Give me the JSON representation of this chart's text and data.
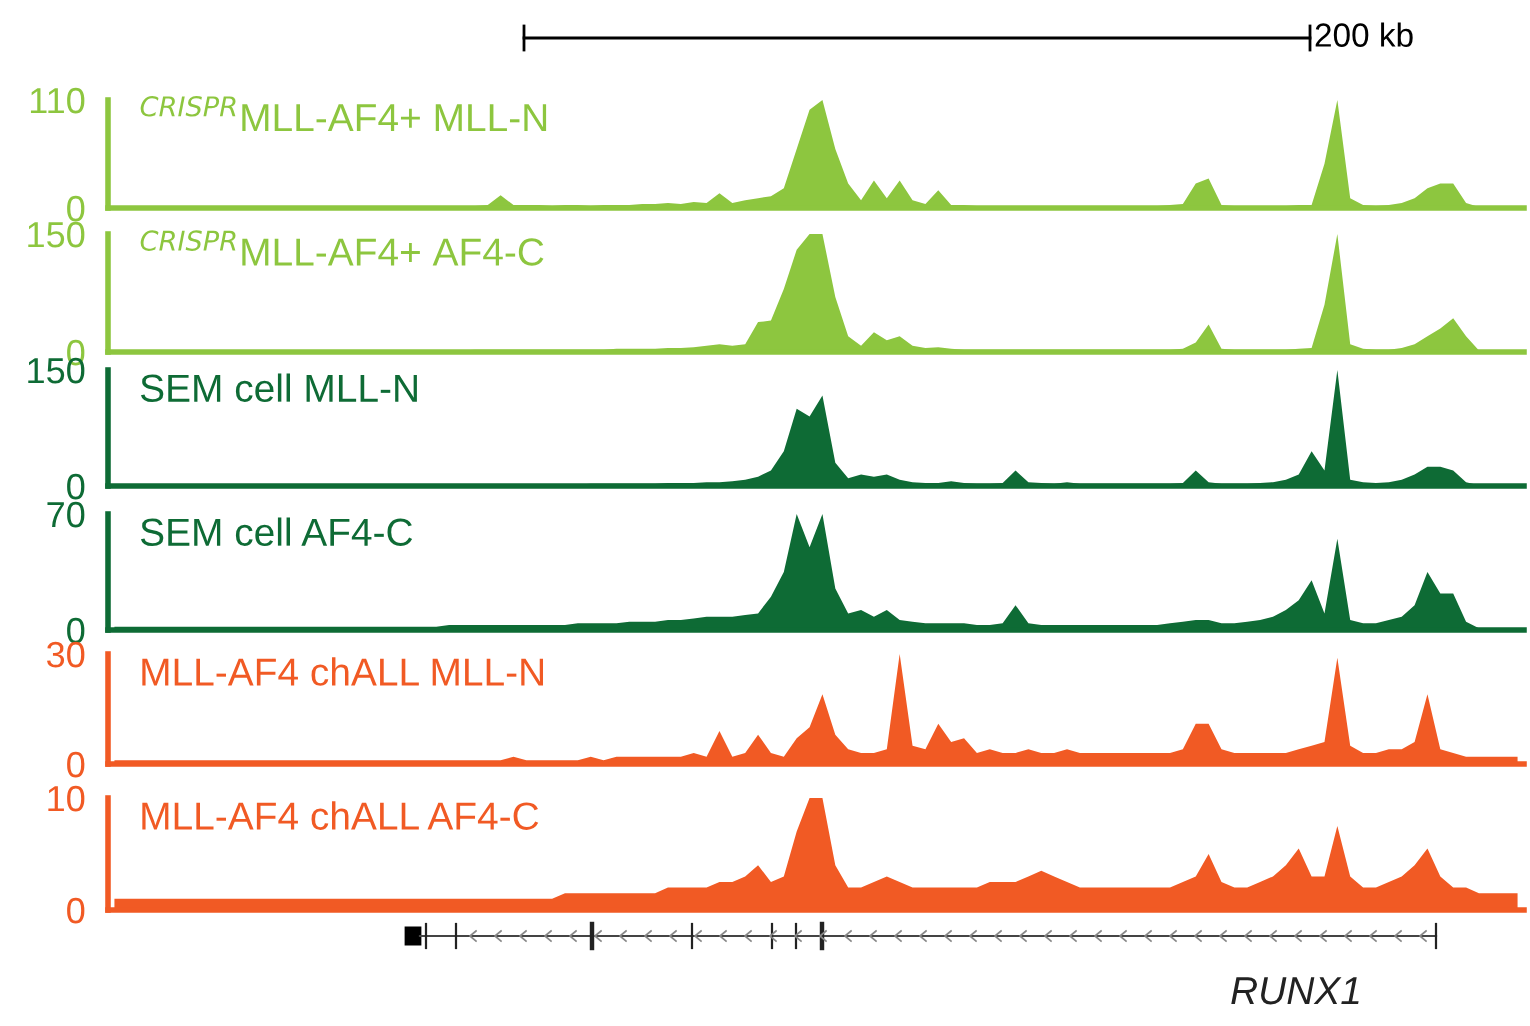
{
  "chart_data": [
    {
      "type": "area",
      "title": "$^{CRISPR}$MLL-AF4+ MLL-N",
      "annotations": [
        "200 kb"
      ],
      "ylim": [
        0,
        110
      ],
      "yticks": [
        0,
        110
      ],
      "grid": false,
      "categories": [
        null,
        null,
        null,
        null,
        null,
        null,
        null,
        null,
        null,
        null,
        null,
        null,
        null,
        null,
        null,
        null,
        null,
        null,
        null,
        null,
        null,
        null,
        null,
        null,
        null,
        null,
        null,
        null,
        null,
        null,
        null,
        null,
        null,
        null,
        null,
        null,
        null,
        null,
        null,
        null,
        null,
        null,
        null,
        null,
        null,
        null,
        null,
        null,
        null,
        null,
        null,
        null,
        null,
        null,
        null,
        null,
        null,
        null,
        null,
        null,
        null,
        null,
        null,
        null,
        null,
        null,
        null,
        null,
        null,
        null,
        null,
        null,
        null,
        null,
        null,
        null,
        null,
        null,
        null,
        null,
        null,
        null,
        null,
        null,
        null,
        null,
        null,
        null,
        null,
        null,
        null,
        null,
        null,
        null,
        null,
        null,
        null,
        null,
        null,
        null,
        null,
        null,
        null,
        null,
        null,
        null,
        null,
        null,
        null,
        null
      ],
      "series": [
        {
          "color": "#8dc63f",
          "values": [
            1,
            1,
            1,
            1,
            1,
            1,
            1,
            1,
            1,
            1,
            1,
            1,
            1,
            1,
            1,
            1,
            1,
            1,
            1,
            1,
            1,
            1,
            1,
            1,
            1,
            1,
            2,
            2,
            2,
            3,
            13,
            3,
            3,
            3,
            2,
            3,
            3,
            2,
            3,
            3,
            3,
            4,
            4,
            5,
            4,
            6,
            5,
            15,
            5,
            8,
            10,
            12,
            20,
            60,
            100,
            110,
            60,
            25,
            8,
            28,
            10,
            28,
            8,
            4,
            18,
            3,
            3,
            2,
            2,
            2,
            2,
            2,
            2,
            2,
            2,
            2,
            2,
            2,
            2,
            2,
            2,
            2,
            3,
            4,
            25,
            30,
            3,
            2,
            2,
            2,
            2,
            2,
            3,
            3,
            45,
            110,
            10,
            3,
            2,
            3,
            5,
            10,
            20,
            25,
            25,
            5,
            1,
            1,
            1,
            1
          ]
        }
      ]
    },
    {
      "type": "area",
      "title": "$^{CRISPR}$MLL-AF4+ AF4-C",
      "ylim": [
        0,
        150
      ],
      "yticks": [
        0,
        150
      ],
      "grid": false,
      "categories": [
        null,
        null,
        null,
        null,
        null,
        null,
        null,
        null,
        null,
        null,
        null,
        null,
        null,
        null,
        null,
        null,
        null,
        null,
        null,
        null,
        null,
        null,
        null,
        null,
        null,
        null,
        null,
        null,
        null,
        null,
        null,
        null,
        null,
        null,
        null,
        null,
        null,
        null,
        null,
        null,
        null,
        null,
        null,
        null,
        null,
        null,
        null,
        null,
        null,
        null,
        null,
        null,
        null,
        null,
        null,
        null,
        null,
        null,
        null,
        null,
        null,
        null,
        null,
        null,
        null,
        null,
        null,
        null,
        null,
        null,
        null,
        null,
        null,
        null,
        null,
        null,
        null,
        null,
        null,
        null,
        null,
        null,
        null,
        null,
        null,
        null,
        null,
        null,
        null,
        null,
        null,
        null,
        null,
        null,
        null,
        null,
        null,
        null,
        null,
        null,
        null,
        null,
        null,
        null,
        null,
        null,
        null,
        null,
        null,
        null
      ],
      "series": [
        {
          "color": "#8dc63f",
          "values": [
            2,
            2,
            2,
            2,
            2,
            2,
            2,
            2,
            2,
            2,
            2,
            2,
            2,
            2,
            2,
            2,
            2,
            2,
            2,
            2,
            2,
            2,
            2,
            2,
            2,
            2,
            2,
            2,
            3,
            3,
            3,
            3,
            3,
            3,
            3,
            3,
            3,
            3,
            3,
            4,
            4,
            4,
            4,
            5,
            5,
            6,
            8,
            10,
            8,
            10,
            38,
            40,
            80,
            130,
            150,
            150,
            70,
            20,
            8,
            25,
            15,
            20,
            8,
            5,
            6,
            4,
            3,
            3,
            3,
            3,
            3,
            3,
            3,
            3,
            3,
            3,
            3,
            3,
            3,
            3,
            3,
            3,
            3,
            4,
            12,
            35,
            4,
            3,
            3,
            3,
            3,
            3,
            4,
            5,
            60,
            150,
            10,
            4,
            3,
            3,
            5,
            10,
            20,
            30,
            43,
            20,
            2,
            2,
            2,
            2
          ]
        }
      ]
    },
    {
      "type": "area",
      "title": "SEM cell MLL-N",
      "ylim": [
        0,
        150
      ],
      "yticks": [
        0,
        150
      ],
      "grid": false,
      "categories": [
        null,
        null,
        null,
        null,
        null,
        null,
        null,
        null,
        null,
        null,
        null,
        null,
        null,
        null,
        null,
        null,
        null,
        null,
        null,
        null,
        null,
        null,
        null,
        null,
        null,
        null,
        null,
        null,
        null,
        null,
        null,
        null,
        null,
        null,
        null,
        null,
        null,
        null,
        null,
        null,
        null,
        null,
        null,
        null,
        null,
        null,
        null,
        null,
        null,
        null,
        null,
        null,
        null,
        null,
        null,
        null,
        null,
        null,
        null,
        null,
        null,
        null,
        null,
        null,
        null,
        null,
        null,
        null,
        null,
        null,
        null,
        null,
        null,
        null,
        null,
        null,
        null,
        null,
        null,
        null,
        null,
        null,
        null,
        null,
        null,
        null,
        null,
        null,
        null,
        null,
        null,
        null,
        null,
        null,
        null,
        null,
        null,
        null,
        null,
        null,
        null,
        null,
        null,
        null,
        null,
        null,
        null,
        null,
        null,
        null
      ],
      "series": [
        {
          "color": "#0e6b35",
          "values": [
            1,
            1,
            1,
            1,
            1,
            1,
            1,
            1,
            1,
            1,
            1,
            1,
            1,
            1,
            1,
            1,
            1,
            1,
            1,
            1,
            1,
            1,
            1,
            1,
            1,
            1,
            1,
            2,
            2,
            2,
            2,
            2,
            2,
            2,
            2,
            2,
            2,
            3,
            3,
            3,
            3,
            3,
            3,
            4,
            4,
            4,
            5,
            5,
            6,
            8,
            12,
            20,
            45,
            100,
            90,
            117,
            30,
            10,
            15,
            12,
            15,
            8,
            5,
            4,
            4,
            6,
            4,
            3,
            3,
            4,
            20,
            5,
            4,
            3,
            5,
            3,
            3,
            3,
            3,
            3,
            3,
            3,
            3,
            4,
            20,
            5,
            3,
            3,
            3,
            4,
            5,
            8,
            15,
            45,
            20,
            150,
            8,
            5,
            4,
            5,
            8,
            15,
            25,
            25,
            20,
            5,
            1,
            1,
            1,
            1
          ]
        }
      ]
    },
    {
      "type": "area",
      "title": "SEM cell AF4-C",
      "ylim": [
        0,
        70
      ],
      "yticks": [
        0,
        70
      ],
      "grid": false,
      "categories": [
        null,
        null,
        null,
        null,
        null,
        null,
        null,
        null,
        null,
        null,
        null,
        null,
        null,
        null,
        null,
        null,
        null,
        null,
        null,
        null,
        null,
        null,
        null,
        null,
        null,
        null,
        null,
        null,
        null,
        null,
        null,
        null,
        null,
        null,
        null,
        null,
        null,
        null,
        null,
        null,
        null,
        null,
        null,
        null,
        null,
        null,
        null,
        null,
        null,
        null,
        null,
        null,
        null,
        null,
        null,
        null,
        null,
        null,
        null,
        null,
        null,
        null,
        null,
        null,
        null,
        null,
        null,
        null,
        null,
        null,
        null,
        null,
        null,
        null,
        null,
        null,
        null,
        null,
        null,
        null,
        null,
        null,
        null,
        null,
        null,
        null,
        null,
        null,
        null,
        null,
        null,
        null,
        null,
        null,
        null,
        null,
        null,
        null,
        null,
        null,
        null,
        null,
        null,
        null,
        null,
        null,
        null,
        null,
        null,
        null
      ],
      "series": [
        {
          "color": "#0e6b35",
          "values": [
            2,
            2,
            2,
            2,
            2,
            2,
            2,
            2,
            2,
            2,
            2,
            2,
            2,
            2,
            2,
            2,
            2,
            2,
            2,
            2,
            2,
            2,
            2,
            2,
            2,
            2,
            3,
            3,
            3,
            3,
            3,
            3,
            3,
            3,
            3,
            3,
            4,
            4,
            4,
            4,
            5,
            5,
            5,
            6,
            6,
            7,
            8,
            8,
            8,
            9,
            10,
            20,
            35,
            70,
            50,
            70,
            25,
            10,
            12,
            8,
            12,
            6,
            5,
            4,
            4,
            4,
            4,
            3,
            3,
            4,
            15,
            4,
            3,
            3,
            3,
            3,
            3,
            3,
            3,
            3,
            3,
            3,
            4,
            5,
            6,
            6,
            4,
            4,
            5,
            6,
            8,
            12,
            18,
            30,
            10,
            55,
            6,
            4,
            4,
            6,
            8,
            15,
            35,
            22,
            22,
            5,
            1,
            1,
            1,
            1
          ]
        }
      ]
    },
    {
      "type": "area",
      "title": "MLL-AF4 chALL MLL-N",
      "ylim": [
        0,
        30
      ],
      "yticks": [
        0,
        30
      ],
      "grid": false,
      "categories": [
        null,
        null,
        null,
        null,
        null,
        null,
        null,
        null,
        null,
        null,
        null,
        null,
        null,
        null,
        null,
        null,
        null,
        null,
        null,
        null,
        null,
        null,
        null,
        null,
        null,
        null,
        null,
        null,
        null,
        null,
        null,
        null,
        null,
        null,
        null,
        null,
        null,
        null,
        null,
        null,
        null,
        null,
        null,
        null,
        null,
        null,
        null,
        null,
        null,
        null,
        null,
        null,
        null,
        null,
        null,
        null,
        null,
        null,
        null,
        null,
        null,
        null,
        null,
        null,
        null,
        null,
        null,
        null,
        null,
        null,
        null,
        null,
        null,
        null,
        null,
        null,
        null,
        null,
        null,
        null,
        null,
        null,
        null,
        null,
        null,
        null,
        null,
        null,
        null,
        null,
        null,
        null,
        null,
        null,
        null,
        null,
        null,
        null,
        null,
        null,
        null,
        null,
        null,
        null,
        null,
        null,
        null,
        null,
        null,
        null
      ],
      "series": [
        {
          "color": "#f15a24",
          "values": [
            1,
            1,
            1,
            1,
            1,
            1,
            1,
            1,
            1,
            1,
            1,
            1,
            1,
            1,
            1,
            1,
            1,
            1,
            1,
            1,
            1,
            1,
            1,
            1,
            1,
            1,
            1,
            1,
            1,
            1,
            1,
            2,
            1,
            1,
            1,
            1,
            1,
            2,
            1,
            2,
            2,
            2,
            2,
            2,
            2,
            3,
            2,
            9,
            2,
            3,
            8,
            3,
            2,
            7,
            10,
            19,
            8,
            4,
            3,
            3,
            4,
            30,
            5,
            4,
            11,
            6,
            7,
            3,
            4,
            3,
            3,
            4,
            3,
            3,
            4,
            3,
            3,
            3,
            3,
            3,
            3,
            3,
            3,
            4,
            11,
            11,
            4,
            3,
            3,
            3,
            3,
            3,
            4,
            5,
            6,
            29,
            5,
            3,
            3,
            4,
            4,
            6,
            19,
            4,
            3,
            2,
            2,
            2,
            2,
            2
          ]
        }
      ]
    },
    {
      "type": "area",
      "title": "MLL-AF4 chALL AF4-C",
      "annotations": [
        "RUNX1"
      ],
      "ylim": [
        0,
        10
      ],
      "yticks": [
        0,
        10
      ],
      "grid": false,
      "categories": [
        null,
        null,
        null,
        null,
        null,
        null,
        null,
        null,
        null,
        null,
        null,
        null,
        null,
        null,
        null,
        null,
        null,
        null,
        null,
        null,
        null,
        null,
        null,
        null,
        null,
        null,
        null,
        null,
        null,
        null,
        null,
        null,
        null,
        null,
        null,
        null,
        null,
        null,
        null,
        null,
        null,
        null,
        null,
        null,
        null,
        null,
        null,
        null,
        null,
        null,
        null,
        null,
        null,
        null,
        null,
        null,
        null,
        null,
        null,
        null,
        null,
        null,
        null,
        null,
        null,
        null,
        null,
        null,
        null,
        null,
        null,
        null,
        null,
        null,
        null,
        null,
        null,
        null,
        null,
        null,
        null,
        null,
        null,
        null,
        null,
        null,
        null,
        null,
        null,
        null,
        null,
        null,
        null,
        null,
        null,
        null,
        null,
        null,
        null,
        null,
        null,
        null,
        null,
        null,
        null,
        null,
        null,
        null,
        null,
        null
      ],
      "series": [
        {
          "color": "#f15a24",
          "values": [
            1,
            1,
            1,
            1,
            1,
            1,
            1,
            1,
            1,
            1,
            1,
            1,
            1,
            1,
            1,
            1,
            1,
            1,
            1,
            1,
            1,
            1,
            1,
            1,
            1,
            1,
            1,
            1,
            1,
            1,
            1,
            1,
            1,
            1,
            1,
            1.5,
            1.5,
            1.5,
            1.5,
            1.5,
            1.5,
            1.5,
            1.5,
            2,
            2,
            2,
            2,
            2.5,
            2.5,
            3,
            4,
            2.5,
            3,
            7,
            10,
            10,
            4,
            2,
            2,
            2.5,
            3,
            2.5,
            2,
            2,
            2,
            2,
            2,
            2,
            2.5,
            2.5,
            2.5,
            3,
            3.5,
            3,
            2.5,
            2,
            2,
            2,
            2,
            2,
            2,
            2,
            2,
            2.5,
            3,
            5,
            2.5,
            2,
            2,
            2.5,
            3,
            4,
            5.5,
            3,
            3,
            7.5,
            3,
            2,
            2,
            2.5,
            3,
            4,
            5.5,
            3,
            2,
            2,
            1.5,
            1.5,
            1.5,
            1.5
          ]
        }
      ]
    }
  ]
}
